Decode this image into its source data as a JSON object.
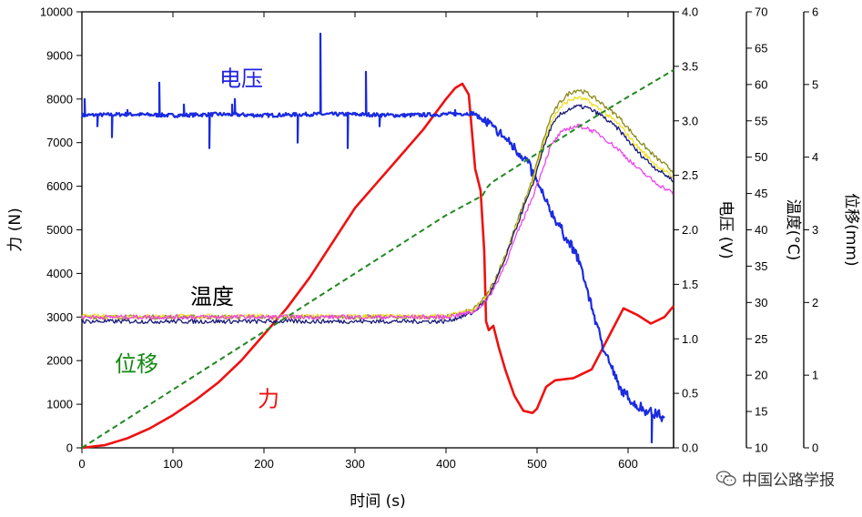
{
  "chart_data": {
    "type": "line",
    "xlabel": "时间 (s)",
    "xlim": [
      0,
      650
    ],
    "xticks": [
      0,
      100,
      200,
      300,
      400,
      500,
      600
    ],
    "axes": [
      {
        "key": "force",
        "label": "力 (N)",
        "lim": [
          0,
          10000
        ],
        "ticks": [
          0,
          1000,
          2000,
          3000,
          4000,
          5000,
          6000,
          7000,
          8000,
          9000,
          10000
        ]
      },
      {
        "key": "voltage",
        "label": "电压 (V)",
        "lim": [
          0,
          4
        ],
        "ticks": [
          "0.0",
          "0.5",
          "1.0",
          "1.5",
          "2.0",
          "2.5",
          "3.0",
          "3.5",
          "4.0"
        ]
      },
      {
        "key": "temperature",
        "label": "温度(°C)",
        "lim": [
          10,
          70
        ],
        "ticks": [
          10,
          15,
          20,
          25,
          30,
          35,
          40,
          45,
          50,
          55,
          60,
          65,
          70
        ]
      },
      {
        "key": "displacement",
        "label": "位移(mm)",
        "lim": [
          0,
          6
        ],
        "ticks": [
          0,
          1,
          2,
          3,
          4,
          5,
          6
        ]
      }
    ],
    "annotations": [
      {
        "text": "电压",
        "color": "#2222dd",
        "x": 175,
        "y_force": 8300
      },
      {
        "text": "温度",
        "color": "#000000",
        "x": 143,
        "y_force": 3300
      },
      {
        "text": "位移",
        "color": "#118811",
        "x": 60,
        "y_force": 1750
      },
      {
        "text": "力",
        "color": "#ee1111",
        "x": 205,
        "y_force": 950
      }
    ],
    "series": [
      {
        "axis": "force",
        "color": "#ee1111",
        "x": [
          0,
          25,
          50,
          75,
          100,
          125,
          150,
          175,
          200,
          225,
          250,
          275,
          300,
          325,
          350,
          375,
          400,
          410,
          418,
          425,
          432,
          438,
          442,
          444,
          447,
          452,
          458,
          465,
          475,
          485,
          495,
          500,
          510,
          520,
          540,
          560,
          580,
          595,
          610,
          625,
          640,
          650
        ],
        "y": [
          0,
          60,
          220,
          450,
          750,
          1100,
          1500,
          2000,
          2600,
          3200,
          3900,
          4700,
          5500,
          6100,
          6700,
          7300,
          8000,
          8250,
          8350,
          8100,
          6400,
          5900,
          4500,
          2900,
          2700,
          2800,
          2300,
          1800,
          1200,
          850,
          800,
          900,
          1400,
          1550,
          1600,
          1800,
          2600,
          3200,
          3050,
          2850,
          3000,
          3250
        ]
      },
      {
        "axis": "voltage",
        "color": "#1a2be0",
        "x": [
          0,
          50,
          100,
          150,
          200,
          250,
          300,
          350,
          400,
          430,
          450,
          470,
          490,
          510,
          530,
          545,
          555,
          570,
          590,
          610,
          625,
          635,
          640
        ],
        "y": [
          3.05,
          3.06,
          3.05,
          3.06,
          3.05,
          3.06,
          3.06,
          3.05,
          3.06,
          3.07,
          2.95,
          2.8,
          2.62,
          2.25,
          1.95,
          1.75,
          1.45,
          1.0,
          0.55,
          0.38,
          0.33,
          0.3,
          0.25
        ],
        "spikes": [
          [
            3,
            3.2
          ],
          [
            17,
            2.95
          ],
          [
            33,
            2.85
          ],
          [
            50,
            3.1
          ],
          [
            85,
            3.35
          ],
          [
            112,
            3.15
          ],
          [
            140,
            2.75
          ],
          [
            165,
            3.15
          ],
          [
            168,
            3.2
          ],
          [
            237,
            2.8
          ],
          [
            262,
            3.8
          ],
          [
            292,
            2.75
          ],
          [
            312,
            3.45
          ],
          [
            327,
            2.95
          ],
          [
            410,
            3.1
          ],
          [
            626,
            0.05
          ]
        ]
      },
      {
        "axis": "temperature",
        "color": "#8a8a1a",
        "x": [
          0,
          100,
          200,
          300,
          400,
          430,
          445,
          455,
          465,
          475,
          485,
          495,
          505,
          515,
          525,
          535,
          545,
          555,
          570,
          590,
          610,
          630,
          650
        ],
        "y": [
          28.0,
          28.0,
          28.0,
          28.0,
          28.0,
          29.0,
          31.0,
          33.5,
          36.5,
          40.0,
          43.5,
          47.0,
          51.5,
          55.5,
          57.5,
          58.8,
          59.3,
          58.8,
          57.5,
          55.5,
          52.5,
          50.0,
          48.0
        ]
      },
      {
        "axis": "temperature",
        "color": "#f0e020",
        "x": [
          0,
          100,
          200,
          300,
          400,
          430,
          445,
          455,
          465,
          475,
          485,
          495,
          505,
          515,
          525,
          535,
          545,
          555,
          570,
          590,
          610,
          630,
          650
        ],
        "y": [
          28.1,
          28.1,
          28.1,
          28.1,
          28.1,
          28.9,
          30.8,
          33.2,
          36.2,
          39.7,
          43.2,
          46.5,
          51.0,
          54.8,
          56.8,
          57.8,
          58.2,
          57.8,
          56.5,
          54.5,
          51.5,
          49.0,
          47.2
        ]
      },
      {
        "axis": "temperature",
        "color": "#1a1a77",
        "x": [
          0,
          100,
          200,
          300,
          400,
          430,
          445,
          455,
          465,
          475,
          485,
          495,
          505,
          515,
          525,
          535,
          545,
          555,
          570,
          590,
          610,
          630,
          650
        ],
        "y": [
          27.4,
          27.4,
          27.4,
          27.4,
          27.4,
          28.6,
          30.5,
          33.0,
          36.0,
          39.5,
          43.0,
          46.0,
          50.5,
          54.0,
          55.8,
          56.6,
          57.0,
          56.8,
          55.8,
          53.8,
          50.8,
          48.5,
          46.8
        ]
      },
      {
        "axis": "temperature",
        "color": "#ee44ee",
        "x": [
          0,
          100,
          200,
          300,
          400,
          430,
          445,
          455,
          465,
          475,
          485,
          495,
          505,
          515,
          525,
          535,
          545,
          555,
          570,
          590,
          610,
          630,
          650
        ],
        "y": [
          28.0,
          28.0,
          28.0,
          28.0,
          28.0,
          28.7,
          30.3,
          32.5,
          35.3,
          38.5,
          41.5,
          44.5,
          48.0,
          51.5,
          53.2,
          54.0,
          54.3,
          54.0,
          53.0,
          51.0,
          48.5,
          46.5,
          45.0
        ]
      },
      {
        "axis": "displacement",
        "color": "#228822",
        "dashed": true,
        "x": [
          0,
          50,
          100,
          150,
          200,
          250,
          300,
          350,
          400,
          440,
          445,
          450,
          500,
          550,
          600,
          650
        ],
        "y": [
          0,
          0.4,
          0.8,
          1.2,
          1.6,
          2.0,
          2.4,
          2.8,
          3.2,
          3.47,
          3.58,
          3.65,
          4.05,
          4.45,
          4.83,
          5.2
        ]
      }
    ]
  },
  "watermark": {
    "text": "中国公路学报"
  }
}
